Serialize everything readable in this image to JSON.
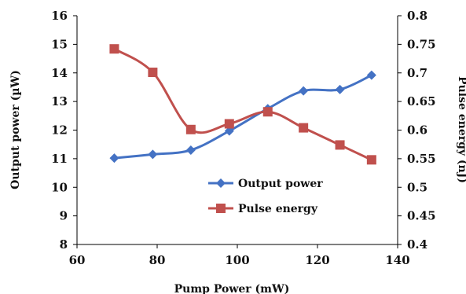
{
  "chart_data": {
    "type": "line",
    "smooth": true,
    "xlabel": "Pump Power (mW)",
    "ylabel_left": "Output power (µW)",
    "ylabel_right": "Pulse energy (nJ)",
    "xlim": [
      60,
      140
    ],
    "ylim_left": [
      8,
      16
    ],
    "ylim_right": [
      0.4,
      0.8
    ],
    "xticks": [
      "60",
      "80",
      "100",
      "120",
      "140"
    ],
    "yticks_left": [
      "8",
      "9",
      "10",
      "11",
      "12",
      "13",
      "14",
      "15",
      "16"
    ],
    "yticks_right": [
      "0.4",
      "0.45",
      "0.5",
      "0.55",
      "0.6",
      "0.65",
      "0.7",
      "0.75",
      "0.8"
    ],
    "grid": false,
    "legend_position": "lower-right inside",
    "series": [
      {
        "name": "Output power",
        "axis": "left",
        "color": "#4472C4",
        "marker": "diamond",
        "x": [
          69.3,
          78.9,
          88.4,
          98.0,
          107.6,
          116.5,
          125.6,
          133.5
        ],
        "y": [
          11.02,
          11.15,
          11.3,
          11.97,
          12.75,
          13.37,
          13.42,
          13.92
        ]
      },
      {
        "name": "Pulse energy",
        "axis": "right",
        "color": "#C0504D",
        "marker": "square",
        "x": [
          69.3,
          78.9,
          88.4,
          98.0,
          107.6,
          116.5,
          125.6,
          133.5
        ],
        "y": [
          0.742,
          0.701,
          0.601,
          0.611,
          0.632,
          0.604,
          0.574,
          0.548
        ]
      }
    ]
  }
}
